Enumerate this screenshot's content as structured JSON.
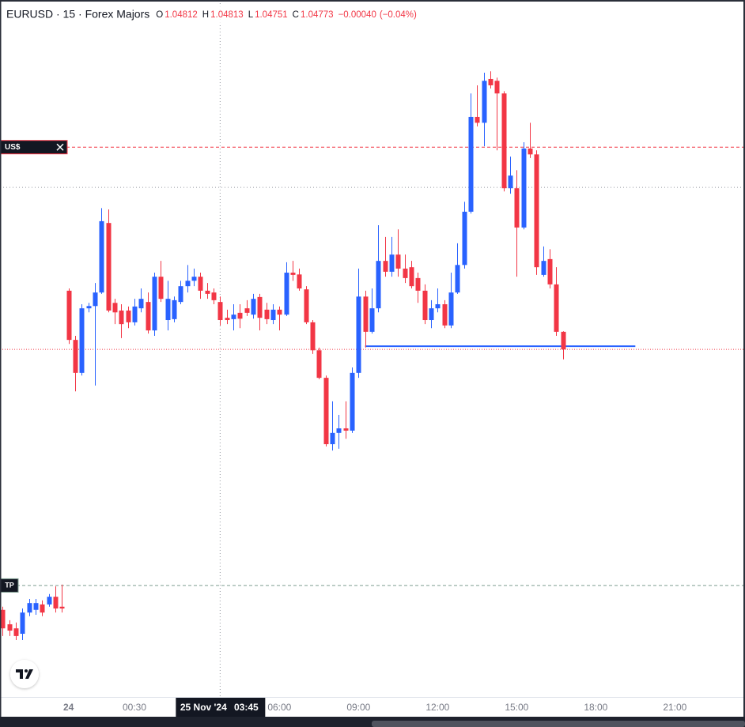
{
  "chart_data": {
    "type": "candlestick",
    "title": "EURUSD · 15 · Forex Majors",
    "ohlc_labels": [
      "O",
      "H",
      "L",
      "C"
    ],
    "change": {
      "value": -0.0004,
      "label": "−0.00040"
    },
    "change_pct": {
      "value": -0.04,
      "label": "(−0.04%)"
    },
    "up_color": "#2962ff",
    "down_color": "#f23645",
    "xlim": [
      -4.6,
      23.66
    ],
    "ylim": [
      1.04003,
      1.05547
    ],
    "xticks": [
      {
        "value": -2,
        "label": "24"
      },
      {
        "value": 0.5,
        "label": "00:30"
      },
      {
        "value": 6,
        "label": "06:00"
      },
      {
        "value": 9,
        "label": "09:00"
      },
      {
        "value": 12,
        "label": "12:00"
      },
      {
        "value": 15,
        "label": "15:00"
      },
      {
        "value": 18,
        "label": "18:00"
      },
      {
        "value": 21,
        "label": "21:00"
      }
    ],
    "candles": {
      "x": [
        -4.5,
        -4.25,
        -4,
        -3.75,
        -3.5,
        -3.25,
        -3,
        -2.75,
        -2.5,
        -2.25,
        -2,
        -1.75,
        -1.5,
        -1.25,
        -1,
        -0.75,
        -0.5,
        -0.25,
        0,
        0.25,
        0.5,
        0.75,
        1,
        1.25,
        1.5,
        1.75,
        2,
        2.25,
        2.5,
        2.75,
        3,
        3.25,
        3.5,
        3.75,
        4,
        4.25,
        4.5,
        4.75,
        5,
        5.25,
        5.5,
        5.75,
        6,
        6.25,
        6.5,
        6.75,
        7,
        7.25,
        7.5,
        7.75,
        8,
        8.25,
        8.5,
        8.75,
        9,
        9.25,
        9.5,
        9.75,
        10,
        10.25,
        10.5,
        10.75,
        11,
        11.25,
        11.5,
        11.75,
        12,
        12.25,
        12.5,
        12.75,
        13,
        13.25,
        13.5,
        13.75,
        14,
        14.25,
        14.5,
        14.75,
        15,
        15.25,
        15.5,
        15.75,
        16,
        16.25,
        16.5,
        16.75
      ],
      "open": [
        1.04196,
        1.04164,
        1.04155,
        1.04143,
        1.0419,
        1.04196,
        1.04208,
        1.04208,
        1.04225,
        1.04203,
        1.04903,
        1.04794,
        1.04721,
        1.04864,
        1.04869,
        1.04899,
        1.05053,
        1.04876,
        1.04859,
        1.04859,
        1.04833,
        1.04864,
        1.04878,
        1.04815,
        1.04934,
        1.04838,
        1.0484,
        1.04878,
        1.04913,
        1.04925,
        1.04934,
        1.04903,
        1.04899,
        1.04878,
        1.04843,
        1.0484,
        1.04854,
        1.04864,
        1.0485,
        1.04889,
        1.04861,
        1.04838,
        1.04861,
        1.0485,
        1.04943,
        1.04939,
        1.04906,
        1.04833,
        1.04771,
        1.0471,
        1.04563,
        1.04588,
        1.04598,
        1.04593,
        1.04721,
        1.0489,
        1.04812,
        1.04864,
        1.04969,
        1.04945,
        1.04983,
        1.04952,
        1.04955,
        1.04931,
        1.04903,
        1.04838,
        1.04864,
        1.04873,
        1.04826,
        1.04899,
        1.0496,
        1.05078,
        1.05288,
        1.05275,
        1.05372,
        1.05368,
        1.0534,
        1.0513,
        1.0513,
        1.05043,
        1.05218,
        1.05205,
        1.04938,
        1.04973,
        1.04917,
        1.04812
      ],
      "high": [
        1.04203,
        1.04173,
        1.04168,
        1.04199,
        1.0422,
        1.0422,
        1.04217,
        1.04231,
        1.04248,
        1.04252,
        1.04908,
        1.04803,
        1.04873,
        1.04876,
        1.0492,
        1.05086,
        1.05083,
        1.04885,
        1.04873,
        1.04868,
        1.04885,
        1.04908,
        1.04899,
        1.04943,
        1.04969,
        1.04925,
        1.0489,
        1.04925,
        1.0496,
        1.04952,
        1.04943,
        1.0492,
        1.04908,
        1.0489,
        1.04861,
        1.04873,
        1.04873,
        1.04882,
        1.04896,
        1.04896,
        1.04876,
        1.04873,
        1.04868,
        1.04966,
        1.04969,
        1.04952,
        1.04913,
        1.04838,
        1.04777,
        1.04715,
        1.04658,
        1.04628,
        1.04658,
        1.04733,
        1.04952,
        1.04903,
        1.04908,
        1.05048,
        1.05022,
        1.05022,
        1.05039,
        1.04983,
        1.04969,
        1.04943,
        1.04917,
        1.04882,
        1.04908,
        1.04882,
        1.04943,
        1.05008,
        1.051,
        1.0534,
        1.05358,
        1.05386,
        1.05389,
        1.05375,
        1.05345,
        1.052,
        1.0517,
        1.05232,
        1.05275,
        1.05214,
        1.05001,
        1.04995,
        1.04955,
        1.04813
      ],
      "low": [
        1.04138,
        1.04138,
        1.04129,
        1.04129,
        1.04182,
        1.04185,
        1.04182,
        1.04203,
        1.0419,
        1.0419,
        1.04785,
        1.0468,
        1.04715,
        1.04855,
        1.04693,
        1.04896,
        1.04855,
        1.04829,
        1.04798,
        1.0482,
        1.04826,
        1.04855,
        1.04808,
        1.04803,
        1.04878,
        1.04815,
        1.04833,
        1.04873,
        1.04899,
        1.04913,
        1.04885,
        1.04885,
        1.04873,
        1.04826,
        1.04829,
        1.04815,
        1.0482,
        1.04847,
        1.04841,
        1.04815,
        1.04829,
        1.04829,
        1.04815,
        1.04847,
        1.04925,
        1.04903,
        1.04829,
        1.04763,
        1.04707,
        1.04558,
        1.04549,
        1.04553,
        1.04575,
        1.04588,
        1.0471,
        1.04777,
        1.04808,
        1.04855,
        1.04934,
        1.04934,
        1.04934,
        1.0492,
        1.04908,
        1.04876,
        1.04829,
        1.0482,
        1.04855,
        1.0482,
        1.0482,
        1.04896,
        1.04952,
        1.05074,
        1.05267,
        1.05223,
        1.05351,
        1.05214,
        1.05123,
        1.05118,
        1.04934,
        1.05039,
        1.05197,
        1.04938,
        1.04934,
        1.04908,
        1.04803,
        1.04751
      ],
      "close": [
        1.04155,
        1.0415,
        1.04138,
        1.0419,
        1.04211,
        1.04211,
        1.0419,
        1.04225,
        1.04199,
        1.04199,
        1.04794,
        1.04721,
        1.04864,
        1.04869,
        1.04899,
        1.05057,
        1.04859,
        1.04855,
        1.04829,
        1.04833,
        1.04868,
        1.04885,
        1.04815,
        1.04934,
        1.04885,
        1.04885,
        1.04882,
        1.04913,
        1.04925,
        1.04934,
        1.04903,
        1.04896,
        1.04882,
        1.04838,
        1.04838,
        1.0485,
        1.04841,
        1.04854,
        1.04885,
        1.04843,
        1.0484,
        1.04861,
        1.0485,
        1.04943,
        1.04938,
        1.04908,
        1.04833,
        1.04771,
        1.0471,
        1.04563,
        1.04588,
        1.04598,
        1.04593,
        1.04721,
        1.0489,
        1.04812,
        1.04864,
        1.04969,
        1.04945,
        1.04983,
        1.04952,
        1.04931,
        1.04913,
        1.04903,
        1.04838,
        1.04864,
        1.04873,
        1.04826,
        1.04899,
        1.0496,
        1.05078,
        1.05288,
        1.05275,
        1.05368,
        1.05358,
        1.0534,
        1.0513,
        1.05158,
        1.05043,
        1.05218,
        1.05205,
        1.04955,
        1.04969,
        1.04917,
        1.04812,
        1.04773
      ]
    },
    "price_lines": [
      {
        "label": "US$",
        "value": 1.05221,
        "color": "#f23645"
      },
      {
        "label": "TP",
        "value": 1.0425,
        "color": "#7f9d90"
      }
    ],
    "trend_line": {
      "x": [
        9.25,
        19.5
      ],
      "y": [
        1.0478,
        1.0478
      ],
      "color": "#2962ff"
    },
    "crosshair": {
      "x": 3.75,
      "y": 1.05132,
      "date_label": "25 Nov '24",
      "time_label": "03:45"
    }
  }
}
